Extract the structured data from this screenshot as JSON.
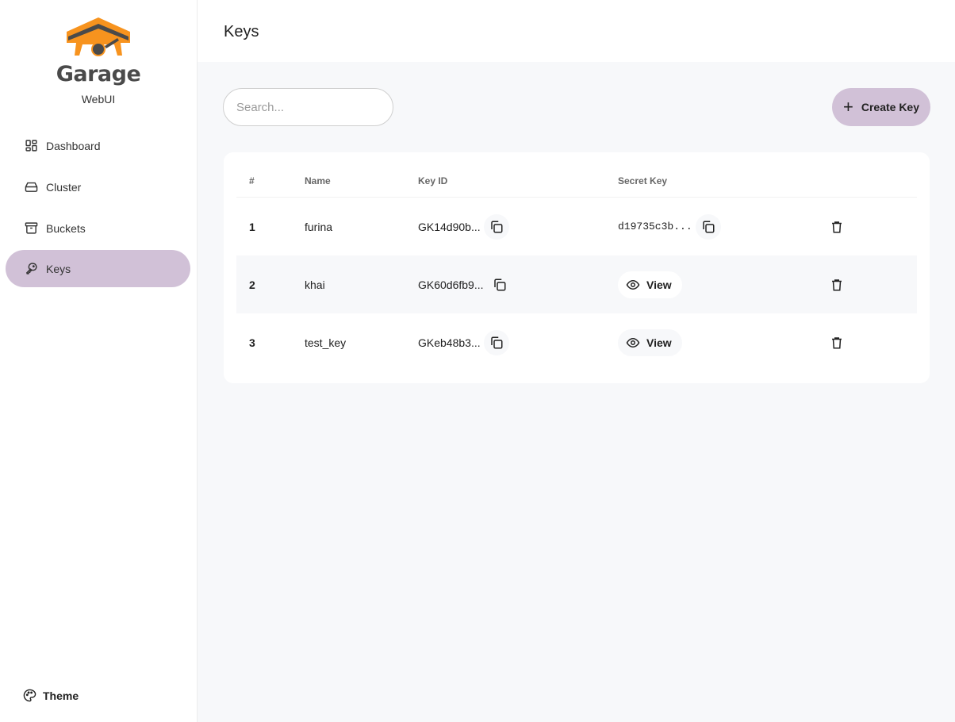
{
  "brand": {
    "name": "Garage",
    "subtitle": "WebUI",
    "logo_colors": [
      "#f7931e",
      "#4a4a4a"
    ]
  },
  "sidebar": {
    "items": [
      {
        "label": "Dashboard",
        "icon": "dashboard-icon"
      },
      {
        "label": "Cluster",
        "icon": "hard-drive-icon"
      },
      {
        "label": "Buckets",
        "icon": "archive-icon"
      },
      {
        "label": "Keys",
        "icon": "key-icon",
        "active": true
      }
    ],
    "theme_label": "Theme"
  },
  "header": {
    "title": "Keys"
  },
  "toolbar": {
    "search_placeholder": "Search...",
    "create_label": "Create Key"
  },
  "table": {
    "columns": [
      "#",
      "Name",
      "Key ID",
      "Secret Key"
    ],
    "rows": [
      {
        "num": "1",
        "name": "furina",
        "key_id": "GK14d90b...",
        "secret": "d19735c3b..."
      },
      {
        "num": "2",
        "name": "khai",
        "key_id": "GK60d6fb9...",
        "secret_button": "View"
      },
      {
        "num": "3",
        "name": "test_key",
        "key_id": "GKeb48b3...",
        "secret_button": "View"
      }
    ]
  },
  "colors": {
    "accent": "#d1c1d7",
    "background": "#f7f8fa"
  }
}
